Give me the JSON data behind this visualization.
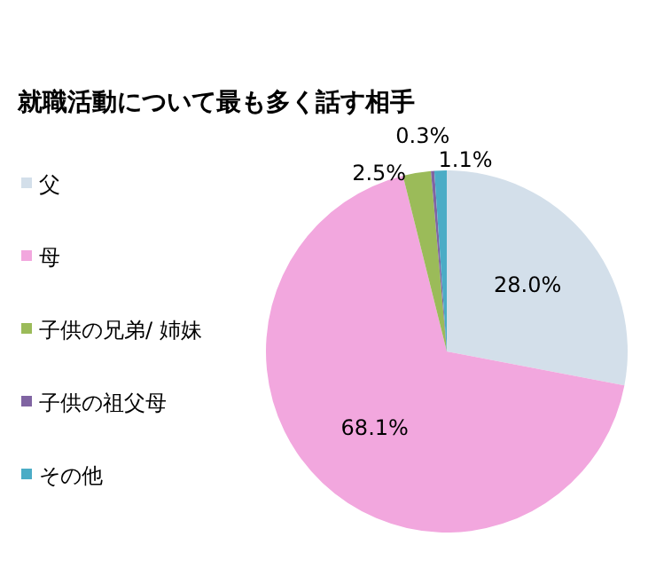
{
  "chart_data": {
    "type": "pie",
    "title": "就職活動について最も多く話す相手",
    "categories": [
      "父",
      "母",
      "子供の兄弟/ 姉妹",
      "子供の祖父母",
      "その他"
    ],
    "values": [
      28.0,
      68.1,
      2.5,
      0.3,
      1.1
    ],
    "value_labels": [
      "28.0%",
      "68.1%",
      "2.5%",
      "0.3%",
      "1.1%"
    ],
    "colors": [
      "#d3dfea",
      "#f2a7de",
      "#9bbb59",
      "#8064a2",
      "#4bacc6"
    ],
    "legend": "left"
  }
}
